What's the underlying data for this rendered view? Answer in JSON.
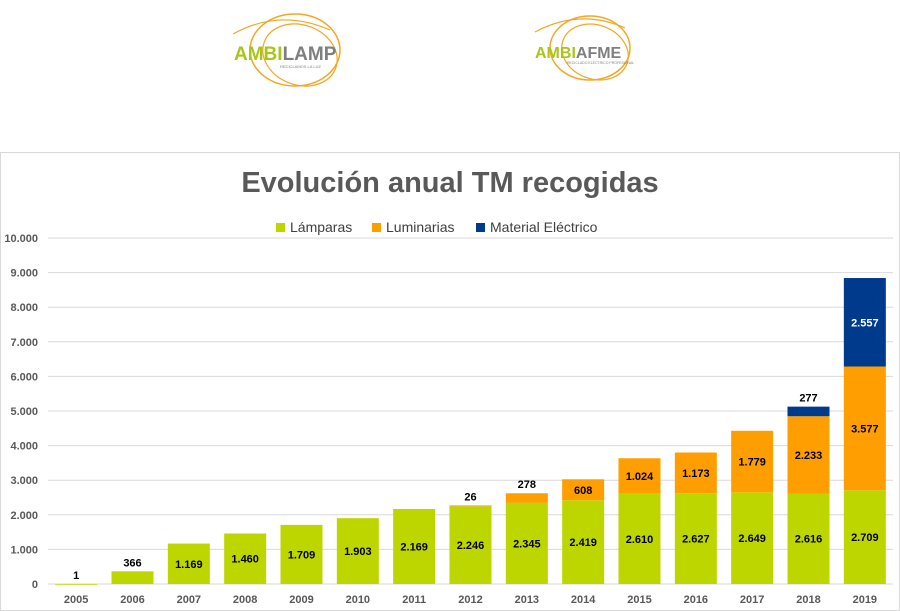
{
  "logos": [
    {
      "name": "AMBILAMP",
      "part1": "AMBI",
      "part2": "LAMP",
      "tagline": "RECICLAMOS LA LUZ"
    },
    {
      "name": "AMBIAFME",
      "part1": "AMBI",
      "part2": "AFME",
      "tagline": "RECICLADO ELÉCTRICO PROFESIONAL"
    }
  ],
  "colors": {
    "lamparas": "#BED600",
    "luminarias": "#FF9E00",
    "material": "#003A8C",
    "logo_green": "#A9C618",
    "logo_orange": "#F5A623",
    "logo_gray": "#7F7F7F",
    "logo_blue": "#1F3F8F"
  },
  "chart_data": {
    "type": "bar",
    "stacked": true,
    "title": "Evolución anual TM recogidas",
    "xlabel": "",
    "ylabel": "",
    "ylim": [
      0,
      10000
    ],
    "yticks": [
      "0",
      "1.000",
      "2.000",
      "3.000",
      "4.000",
      "5.000",
      "6.000",
      "7.000",
      "8.000",
      "9.000",
      "10.000"
    ],
    "grid": true,
    "legend": "top",
    "categories": [
      "2005",
      "2006",
      "2007",
      "2008",
      "2009",
      "2010",
      "2011",
      "2012",
      "2013",
      "2014",
      "2015",
      "2016",
      "2017",
      "2018",
      "2019"
    ],
    "series": [
      {
        "name": "Lámparas",
        "color": "#BED600",
        "values": [
          1,
          366,
          1169,
          1460,
          1709,
          1903,
          2169,
          2246,
          2345,
          2419,
          2610,
          2627,
          2649,
          2616,
          2709
        ],
        "labels": [
          "1",
          "366",
          "1.169",
          "1.460",
          "1.709",
          "1.903",
          "2.169",
          "2.246",
          "2.345",
          "2.419",
          "2.610",
          "2.627",
          "2.649",
          "2.616",
          "2.709"
        ]
      },
      {
        "name": "Luminarias",
        "color": "#FF9E00",
        "values": [
          0,
          0,
          0,
          0,
          0,
          0,
          0,
          26,
          278,
          608,
          1024,
          1173,
          1779,
          2233,
          3577
        ],
        "labels": [
          "",
          "",
          "",
          "",
          "",
          "",
          "",
          "26",
          "278",
          "608",
          "1.024",
          "1.173",
          "1.779",
          "2.233",
          "3.577"
        ]
      },
      {
        "name": "Material Eléctrico",
        "color": "#003A8C",
        "values": [
          0,
          0,
          0,
          0,
          0,
          0,
          0,
          0,
          0,
          0,
          0,
          0,
          0,
          277,
          2557
        ],
        "labels": [
          "",
          "",
          "",
          "",
          "",
          "",
          "",
          "",
          "",
          "",
          "",
          "",
          "",
          "277",
          "2.557"
        ]
      }
    ]
  }
}
